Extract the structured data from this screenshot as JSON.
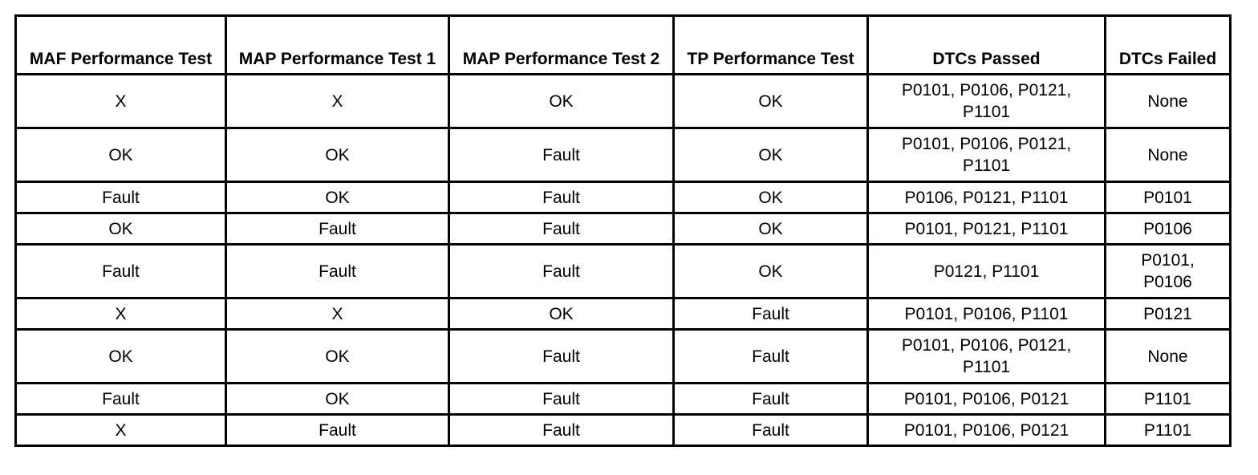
{
  "table": {
    "headers": [
      "MAF Performance Test",
      "MAP Performance Test 1",
      "MAP Performance Test 2",
      "TP Performance Test",
      "DTCs Passed",
      "DTCs Failed"
    ],
    "rows": [
      [
        "X",
        "X",
        "OK",
        "OK",
        "P0101, P0106, P0121, P1101",
        "None"
      ],
      [
        "OK",
        "OK",
        "Fault",
        "OK",
        "P0101, P0106, P0121, P1101",
        "None"
      ],
      [
        "Fault",
        "OK",
        "Fault",
        "OK",
        "P0106, P0121, P1101",
        "P0101"
      ],
      [
        "OK",
        "Fault",
        "Fault",
        "OK",
        "P0101, P0121, P1101",
        "P0106"
      ],
      [
        "Fault",
        "Fault",
        "Fault",
        "OK",
        "P0121, P1101",
        "P0101, P0106"
      ],
      [
        "X",
        "X",
        "OK",
        "Fault",
        "P0101, P0106, P1101",
        "P0121"
      ],
      [
        "OK",
        "OK",
        "Fault",
        "Fault",
        "P0101, P0106, P0121, P1101",
        "None"
      ],
      [
        "Fault",
        "OK",
        "Fault",
        "Fault",
        "P0101, P0106, P0121",
        "P1101"
      ],
      [
        "X",
        "Fault",
        "Fault",
        "Fault",
        "P0101, P0106, P0121",
        "P1101"
      ]
    ]
  }
}
